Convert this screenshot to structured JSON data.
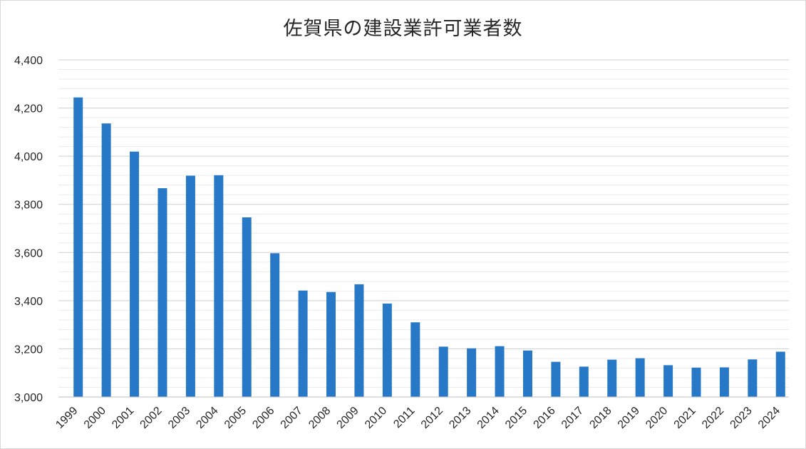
{
  "chart_data": {
    "type": "bar",
    "title": "佐賀県の建設業許可業者数",
    "xlabel": "",
    "ylabel": "",
    "ylim": [
      3000,
      4400
    ],
    "grid": true,
    "major_ticks": [
      "3,000",
      "3,200",
      "3,400",
      "3,600",
      "3,800",
      "4,000",
      "4,200",
      "4,400"
    ],
    "categories": [
      "1999",
      "2000",
      "2001",
      "2002",
      "2003",
      "2004",
      "2005",
      "2006",
      "2007",
      "2008",
      "2009",
      "2010",
      "2011",
      "2012",
      "2013",
      "2014",
      "2015",
      "2016",
      "2017",
      "2018",
      "2019",
      "2020",
      "2021",
      "2022",
      "2023",
      "2024"
    ],
    "values": [
      4244,
      4136,
      4019,
      3867,
      3919,
      3921,
      3746,
      3597,
      3442,
      3436,
      3468,
      3388,
      3310,
      3209,
      3202,
      3211,
      3193,
      3146,
      3126,
      3155,
      3161,
      3132,
      3122,
      3123,
      3156,
      3188
    ],
    "bar_color": "#2878C8"
  }
}
